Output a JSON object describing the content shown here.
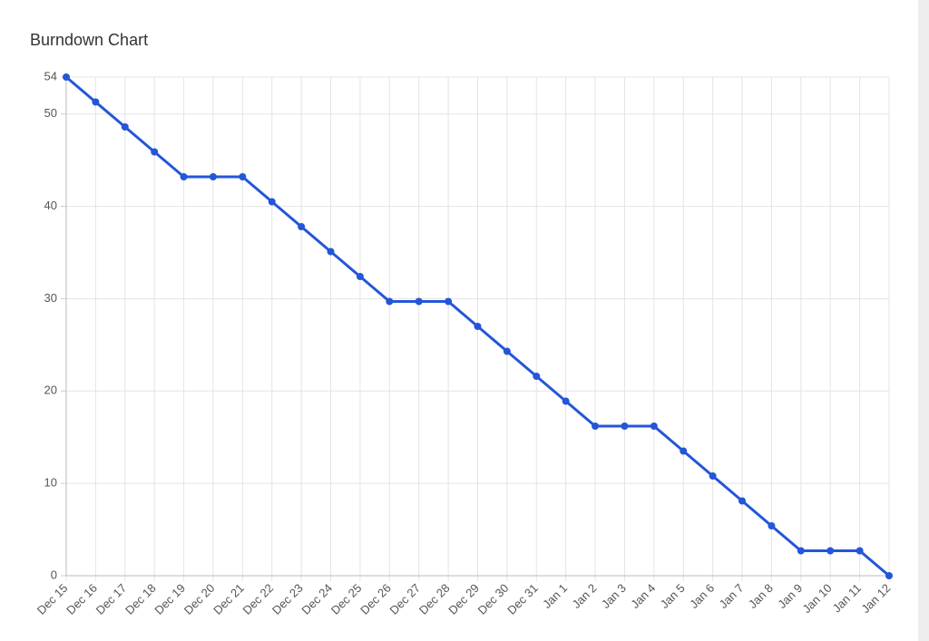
{
  "chart_data": {
    "type": "line",
    "title": "Burndown Chart",
    "categories": [
      "Dec 15",
      "Dec 16",
      "Dec 17",
      "Dec 18",
      "Dec 19",
      "Dec 20",
      "Dec 21",
      "Dec 22",
      "Dec 23",
      "Dec 24",
      "Dec 25",
      "Dec 26",
      "Dec 27",
      "Dec 28",
      "Dec 29",
      "Dec 30",
      "Dec 31",
      "Jan 1",
      "Jan 2",
      "Jan 3",
      "Jan 4",
      "Jan 5",
      "Jan 6",
      "Jan 7",
      "Jan 8",
      "Jan 9",
      "Jan 10",
      "Jan 11",
      "Jan 12"
    ],
    "values": [
      54,
      51.3,
      48.6,
      45.9,
      43.2,
      43.2,
      43.2,
      40.5,
      37.8,
      35.1,
      32.4,
      29.7,
      29.7,
      29.7,
      27,
      24.3,
      21.6,
      18.9,
      16.2,
      16.2,
      16.2,
      13.5,
      10.8,
      8.1,
      5.4,
      2.7,
      2.7,
      2.7,
      0
    ],
    "color": "#2356d8",
    "ylim": [
      0,
      54
    ],
    "yticks": [
      0,
      10,
      20,
      30,
      40,
      50,
      54
    ],
    "grid": true
  }
}
